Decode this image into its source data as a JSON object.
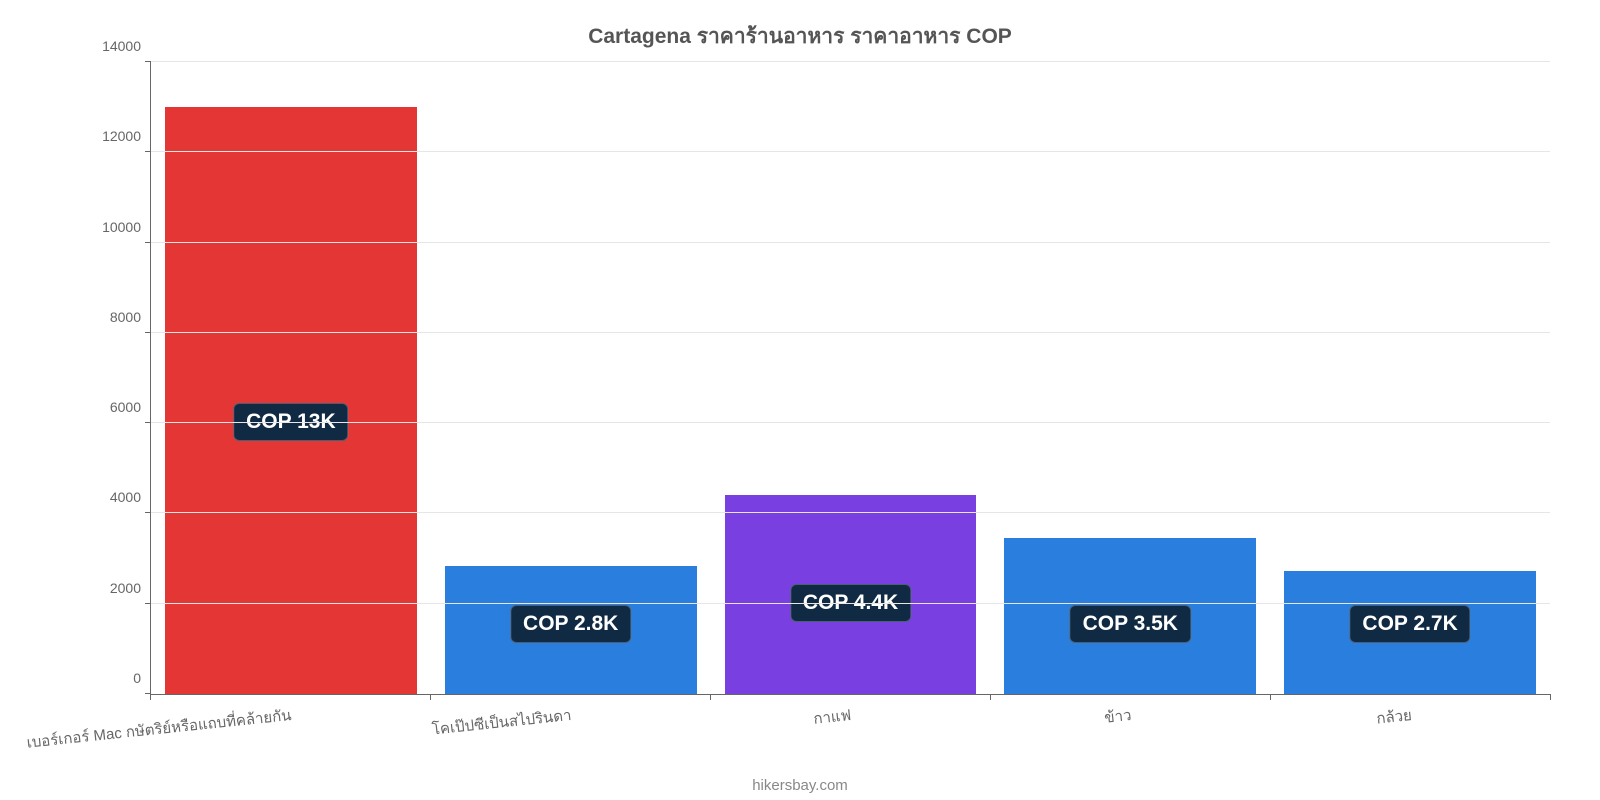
{
  "chart": {
    "type": "bar",
    "title": "Cartagena ราคาร้านอาหาร ราคาอาหาร COP",
    "title_fontsize": 21,
    "title_color": "#555555",
    "background_color": "#ffffff",
    "grid_color": "#e6e6e6",
    "axis_color": "#666666",
    "tick_label_color": "#666666",
    "tick_label_fontsize": 14,
    "x_label_fontsize": 15,
    "x_label_rotation_deg": -6,
    "ylim": [
      0,
      14000
    ],
    "ytick_step": 2000,
    "bar_width_ratio": 0.9,
    "bar_label_bg": "#102a43",
    "bar_label_fg": "#ffffff",
    "bar_label_fontsize": 21,
    "footer": "hikersbay.com",
    "categories": [
      {
        "name": "เบอร์เกอร์ Mac กษัตริย์หรือแถบที่คล้ายกัน",
        "value": 13000,
        "value_label": "COP 13K",
        "color": "#e53636"
      },
      {
        "name": "โคเป๊ปซีเป็นสไปรินดา",
        "value": 2833,
        "value_label": "COP 2.8K",
        "color": "#2a7fde"
      },
      {
        "name": "กาแฟ",
        "value": 4400,
        "value_label": "COP 4.4K",
        "color": "#7a3fe0"
      },
      {
        "name": "ข้าว",
        "value": 3467,
        "value_label": "COP 3.5K",
        "color": "#2a7fde"
      },
      {
        "name": "กล้วย",
        "value": 2733,
        "value_label": "COP 2.7K",
        "color": "#2a7fde"
      }
    ]
  }
}
